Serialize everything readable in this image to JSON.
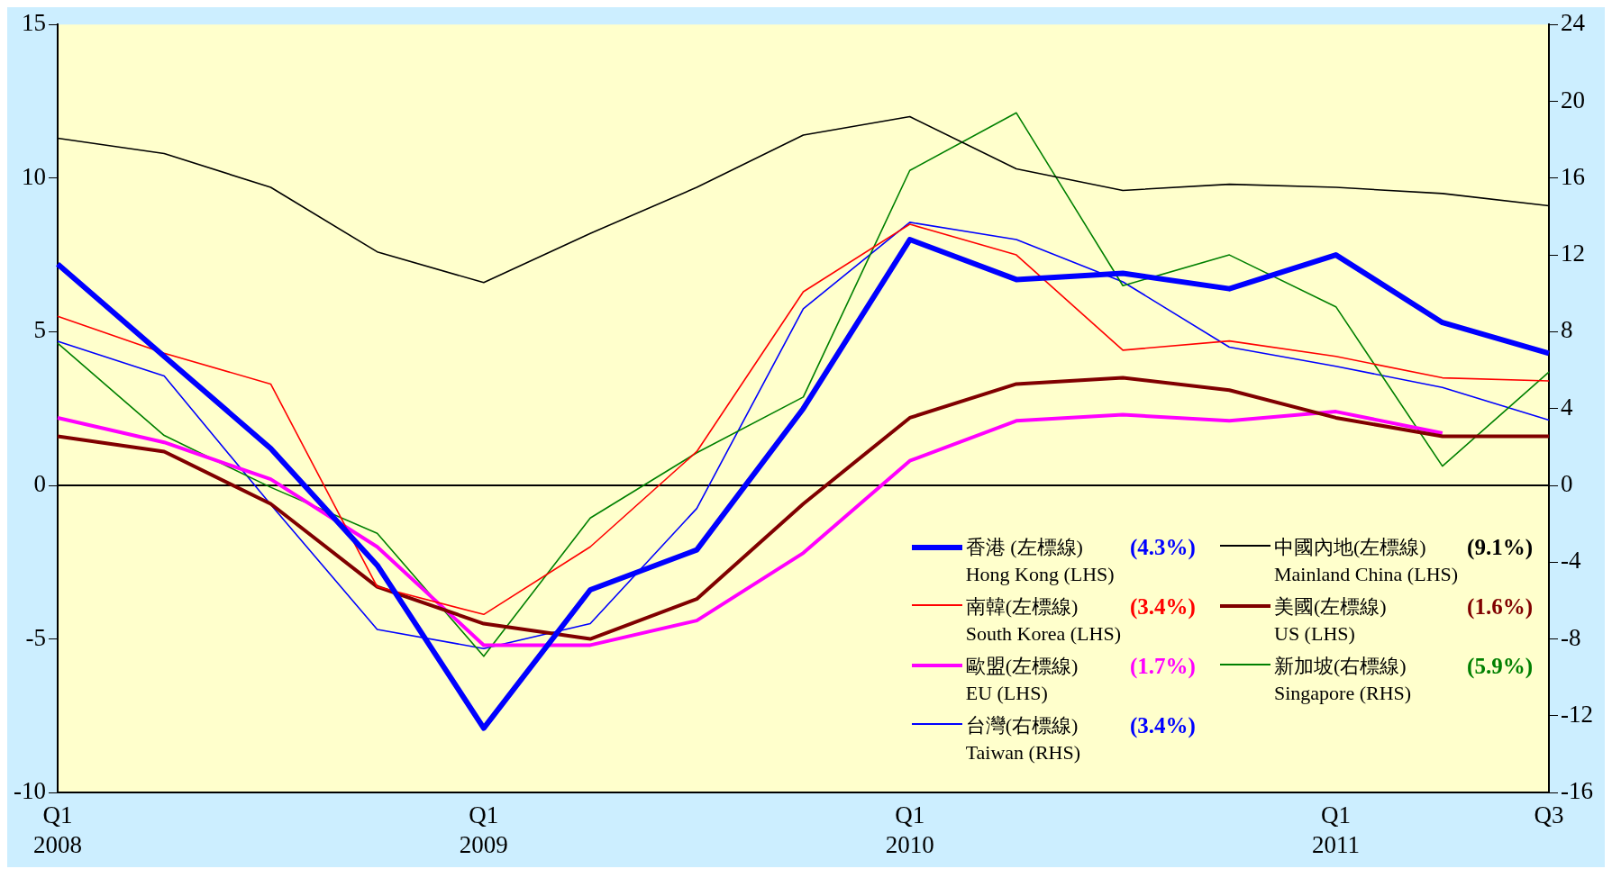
{
  "chart_data": {
    "type": "line",
    "categories": [
      "Q1\n2008",
      null,
      null,
      null,
      "Q1\n2009",
      null,
      null,
      null,
      "Q1\n2010",
      null,
      null,
      null,
      "Q1\n2011",
      null,
      "Q3"
    ],
    "series": [
      {
        "name": "香港 (左標線)\nHong Kong (LHS)",
        "color": "#0000ff",
        "values": [
          7.2,
          4.2,
          1.2,
          -2.6,
          -7.9,
          -3.4,
          -2.1,
          2.5,
          8.0,
          6.7,
          6.9,
          6.4,
          7.5,
          5.3,
          4.3
        ]
      },
      {
        "name": "中國內地(左標線)\nMainland China (LHS)",
        "color": "#000000",
        "values": [
          11.3,
          10.8,
          9.7,
          7.6,
          6.6,
          8.2,
          9.7,
          11.4,
          12.0,
          10.3,
          9.6,
          9.8,
          9.7,
          9.5,
          9.1
        ]
      },
      {
        "name": "南韓(左標線)\nSouth Korea (LHS)",
        "color": "#ff0000",
        "values": [
          5.5,
          4.3,
          3.3,
          -3.3,
          -4.2,
          -2.0,
          1.1,
          6.3,
          8.5,
          7.5,
          4.4,
          4.7,
          4.2,
          3.5,
          3.4
        ]
      },
      {
        "name": "美國(左標線)\nUS (LHS)",
        "color": "#800000",
        "values": [
          1.6,
          1.1,
          -0.6,
          -3.3,
          -4.5,
          -5.0,
          -3.7,
          -0.6,
          2.2,
          3.3,
          3.5,
          3.1,
          2.2,
          1.6,
          1.6
        ]
      },
      {
        "name": "歐盟(左標線)\nEU (LHS)",
        "color": "#ff00ff",
        "values": [
          2.2,
          1.4,
          0.2,
          -2.0,
          -5.2,
          -5.2,
          -4.4,
          -2.2,
          0.8,
          2.1,
          2.3,
          2.1,
          2.4,
          1.7,
          null
        ]
      },
      {
        "name": "新加坡(右標線)\nSingapore (RHS)",
        "color": "#008000",
        "axis": "y2",
        "values": [
          7.4,
          2.6,
          -0.1,
          -2.5,
          -8.9,
          -1.7,
          1.7,
          4.6,
          16.4,
          19.4,
          10.4,
          12.0,
          9.3,
          1.0,
          5.9
        ]
      },
      {
        "name": "台灣(右標線)\nTaiwan (RHS)",
        "color": "#0000ff",
        "axis": "y2",
        "values": [
          7.5,
          5.7,
          -1.0,
          -7.5,
          -8.5,
          -7.2,
          -1.2,
          9.2,
          13.7,
          12.8,
          10.6,
          7.2,
          6.2,
          5.1,
          3.4
        ]
      }
    ],
    "annotations": [
      "(4.3%)",
      "(9.1%)",
      "(3.4%)",
      "(1.6%)",
      "(1.7%)",
      "(5.9%)",
      "(3.4%)"
    ],
    "ylim": [
      -10,
      15
    ],
    "yticks": [
      -10,
      -5,
      0,
      5,
      10,
      15
    ],
    "y2lim": [
      -16,
      24
    ],
    "y2ticks": [
      -16,
      -12,
      -8,
      -4,
      0,
      4,
      8,
      12,
      16,
      20,
      24
    ],
    "ref_lines": [
      {
        "axis": "y",
        "value": 0,
        "color": "#000000"
      }
    ],
    "grid": false,
    "legend": "bottom right",
    "marker": "none",
    "line_style": "solid"
  }
}
